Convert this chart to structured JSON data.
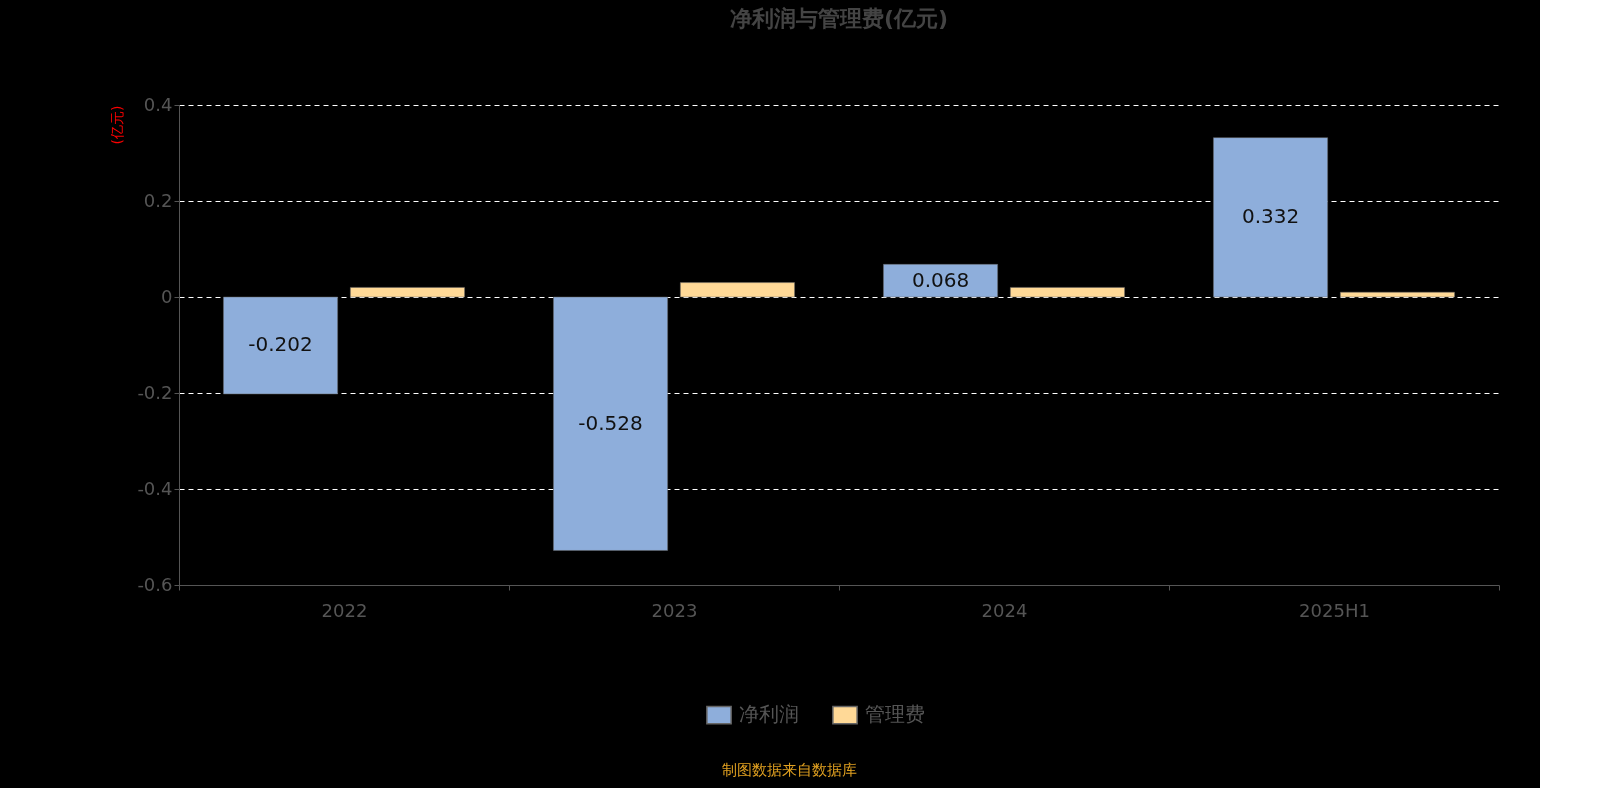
{
  "chart_data": {
    "type": "bar",
    "title": "净利润与管理费(亿元)",
    "ylabel": "(亿元)",
    "categories": [
      "2022",
      "2023",
      "2024",
      "2025H1"
    ],
    "series": [
      {
        "name": "净利润",
        "color": "#8eaedb",
        "values": [
          -0.202,
          -0.528,
          0.068,
          0.332
        ],
        "value_labels": [
          "-0.202",
          "-0.528",
          "0.068",
          "0.332"
        ]
      },
      {
        "name": "管理费",
        "color": "#ffd997",
        "values": [
          0.02,
          0.03,
          0.02,
          0.01
        ]
      }
    ],
    "ylim": [
      -0.6,
      0.4
    ],
    "yticks": [
      -0.6,
      -0.4,
      -0.2,
      0,
      0.2,
      0.4
    ],
    "grid": "y",
    "legend": "bottom",
    "annotations": [
      "制图数据来自数据库"
    ]
  }
}
